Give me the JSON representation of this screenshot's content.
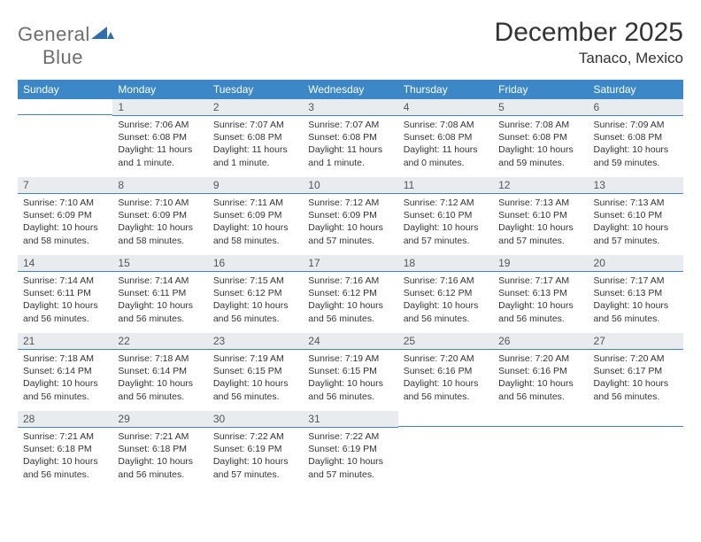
{
  "brand": {
    "part1": "General",
    "part2": "Blue"
  },
  "title": "December 2025",
  "location": "Tanaco, Mexico",
  "colors": {
    "header_bg": "#3b87c8",
    "daynum_bg": "#e9ecef",
    "rule": "#3b87c8"
  },
  "dow": [
    "Sunday",
    "Monday",
    "Tuesday",
    "Wednesday",
    "Thursday",
    "Friday",
    "Saturday"
  ],
  "days": [
    null,
    {
      "n": "1",
      "sr": "7:06 AM",
      "ss": "6:08 PM",
      "dl": "11 hours and 1 minute."
    },
    {
      "n": "2",
      "sr": "7:07 AM",
      "ss": "6:08 PM",
      "dl": "11 hours and 1 minute."
    },
    {
      "n": "3",
      "sr": "7:07 AM",
      "ss": "6:08 PM",
      "dl": "11 hours and 1 minute."
    },
    {
      "n": "4",
      "sr": "7:08 AM",
      "ss": "6:08 PM",
      "dl": "11 hours and 0 minutes."
    },
    {
      "n": "5",
      "sr": "7:08 AM",
      "ss": "6:08 PM",
      "dl": "10 hours and 59 minutes."
    },
    {
      "n": "6",
      "sr": "7:09 AM",
      "ss": "6:08 PM",
      "dl": "10 hours and 59 minutes."
    },
    {
      "n": "7",
      "sr": "7:10 AM",
      "ss": "6:09 PM",
      "dl": "10 hours and 58 minutes."
    },
    {
      "n": "8",
      "sr": "7:10 AM",
      "ss": "6:09 PM",
      "dl": "10 hours and 58 minutes."
    },
    {
      "n": "9",
      "sr": "7:11 AM",
      "ss": "6:09 PM",
      "dl": "10 hours and 58 minutes."
    },
    {
      "n": "10",
      "sr": "7:12 AM",
      "ss": "6:09 PM",
      "dl": "10 hours and 57 minutes."
    },
    {
      "n": "11",
      "sr": "7:12 AM",
      "ss": "6:10 PM",
      "dl": "10 hours and 57 minutes."
    },
    {
      "n": "12",
      "sr": "7:13 AM",
      "ss": "6:10 PM",
      "dl": "10 hours and 57 minutes."
    },
    {
      "n": "13",
      "sr": "7:13 AM",
      "ss": "6:10 PM",
      "dl": "10 hours and 57 minutes."
    },
    {
      "n": "14",
      "sr": "7:14 AM",
      "ss": "6:11 PM",
      "dl": "10 hours and 56 minutes."
    },
    {
      "n": "15",
      "sr": "7:14 AM",
      "ss": "6:11 PM",
      "dl": "10 hours and 56 minutes."
    },
    {
      "n": "16",
      "sr": "7:15 AM",
      "ss": "6:12 PM",
      "dl": "10 hours and 56 minutes."
    },
    {
      "n": "17",
      "sr": "7:16 AM",
      "ss": "6:12 PM",
      "dl": "10 hours and 56 minutes."
    },
    {
      "n": "18",
      "sr": "7:16 AM",
      "ss": "6:12 PM",
      "dl": "10 hours and 56 minutes."
    },
    {
      "n": "19",
      "sr": "7:17 AM",
      "ss": "6:13 PM",
      "dl": "10 hours and 56 minutes."
    },
    {
      "n": "20",
      "sr": "7:17 AM",
      "ss": "6:13 PM",
      "dl": "10 hours and 56 minutes."
    },
    {
      "n": "21",
      "sr": "7:18 AM",
      "ss": "6:14 PM",
      "dl": "10 hours and 56 minutes."
    },
    {
      "n": "22",
      "sr": "7:18 AM",
      "ss": "6:14 PM",
      "dl": "10 hours and 56 minutes."
    },
    {
      "n": "23",
      "sr": "7:19 AM",
      "ss": "6:15 PM",
      "dl": "10 hours and 56 minutes."
    },
    {
      "n": "24",
      "sr": "7:19 AM",
      "ss": "6:15 PM",
      "dl": "10 hours and 56 minutes."
    },
    {
      "n": "25",
      "sr": "7:20 AM",
      "ss": "6:16 PM",
      "dl": "10 hours and 56 minutes."
    },
    {
      "n": "26",
      "sr": "7:20 AM",
      "ss": "6:16 PM",
      "dl": "10 hours and 56 minutes."
    },
    {
      "n": "27",
      "sr": "7:20 AM",
      "ss": "6:17 PM",
      "dl": "10 hours and 56 minutes."
    },
    {
      "n": "28",
      "sr": "7:21 AM",
      "ss": "6:18 PM",
      "dl": "10 hours and 56 minutes."
    },
    {
      "n": "29",
      "sr": "7:21 AM",
      "ss": "6:18 PM",
      "dl": "10 hours and 56 minutes."
    },
    {
      "n": "30",
      "sr": "7:22 AM",
      "ss": "6:19 PM",
      "dl": "10 hours and 57 minutes."
    },
    {
      "n": "31",
      "sr": "7:22 AM",
      "ss": "6:19 PM",
      "dl": "10 hours and 57 minutes."
    },
    null,
    null,
    null
  ],
  "labels": {
    "sunrise": "Sunrise: ",
    "sunset": "Sunset: ",
    "daylight": "Daylight: "
  }
}
